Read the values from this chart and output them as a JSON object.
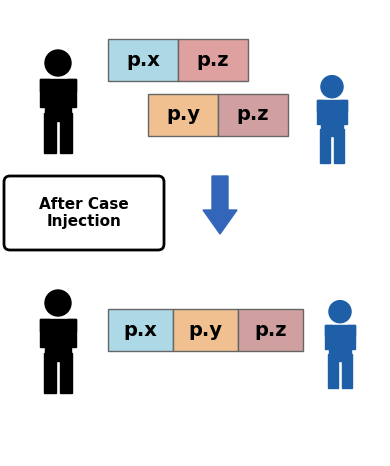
{
  "bg_color": "#ffffff",
  "black_color": "#000000",
  "blue_color": "#1e5fa8",
  "arrow_color": "#3366bb",
  "box_cyan": "#add8e6",
  "box_pink": "#dfa0a0",
  "box_peach": "#f0c090",
  "box_mauve": "#d0a0a0",
  "label_fontsize": 14,
  "after_text": "After Case\nInjection",
  "after_fontsize": 11,
  "row1_boxes": [
    {
      "label": "p.x",
      "color": "#add8e6"
    },
    {
      "label": "p.z",
      "color": "#dfa0a0"
    }
  ],
  "row2_boxes": [
    {
      "label": "p.y",
      "color": "#f0c090"
    },
    {
      "label": "p.z",
      "color": "#d0a0a0"
    }
  ],
  "row3_boxes": [
    {
      "label": "p.x",
      "color": "#add8e6"
    },
    {
      "label": "p.y",
      "color": "#f0c090"
    },
    {
      "label": "p.z",
      "color": "#d0a0a0"
    }
  ]
}
